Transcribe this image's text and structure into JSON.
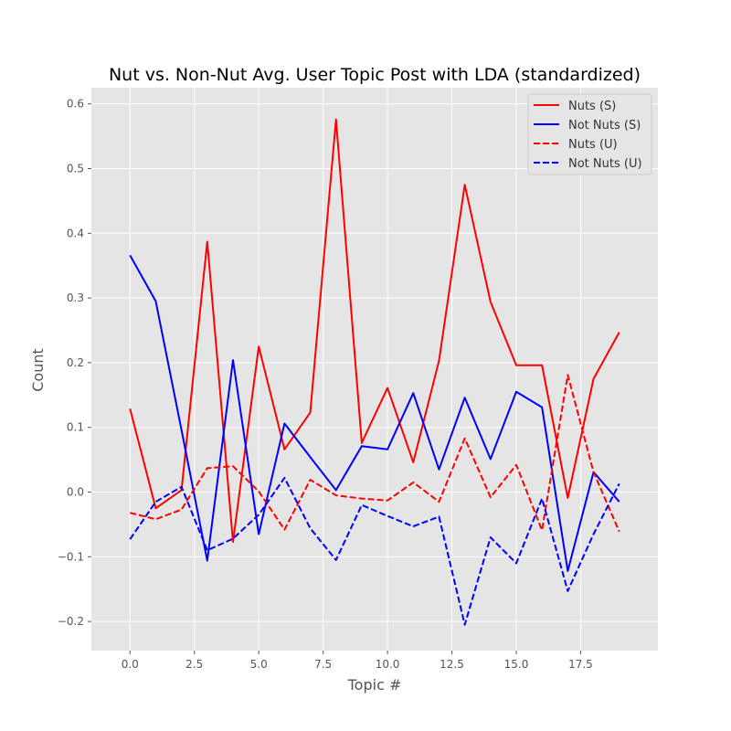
{
  "chart_data": {
    "type": "line",
    "title": "Nut vs. Non-Nut Avg. User Topic Post with LDA (standardized)",
    "xlabel": "Topic #",
    "ylabel": "Count",
    "xlim": [
      -1.5,
      20.5
    ],
    "ylim": [
      -0.245,
      0.625
    ],
    "xticks": [
      0,
      2.5,
      5,
      7.5,
      10,
      12.5,
      15,
      17.5
    ],
    "xtick_labels": [
      "0.0",
      "2.5",
      "5.0",
      "7.5",
      "10.0",
      "12.5",
      "15.0",
      "17.5"
    ],
    "yticks": [
      -0.2,
      -0.1,
      0.0,
      0.1,
      0.2,
      0.3,
      0.4,
      0.5,
      0.6
    ],
    "ytick_labels": [
      "−0.2",
      "−0.1",
      "0.0",
      "0.1",
      "0.2",
      "0.3",
      "0.4",
      "0.5",
      "0.6"
    ],
    "grid": true,
    "legend_position": "top-right",
    "x": [
      0,
      1,
      2,
      3,
      4,
      5,
      6,
      7,
      8,
      9,
      10,
      11,
      12,
      13,
      14,
      15,
      16,
      17,
      18,
      19
    ],
    "series": [
      {
        "name": "Nuts (S)",
        "color": "#ff0000",
        "dash": "solid",
        "values": [
          0.129,
          -0.025,
          0.003,
          0.387,
          -0.077,
          0.225,
          0.066,
          0.123,
          0.576,
          0.076,
          0.161,
          0.046,
          0.203,
          0.475,
          0.294,
          0.196,
          0.196,
          -0.009,
          0.175,
          0.247
        ]
      },
      {
        "name": "Not Nuts (S)",
        "color": "#0000ff",
        "dash": "solid",
        "values": [
          0.366,
          0.295,
          0.096,
          -0.106,
          0.204,
          -0.065,
          0.106,
          0.054,
          0.003,
          0.071,
          0.066,
          0.153,
          0.035,
          0.146,
          0.051,
          0.155,
          0.131,
          -0.122,
          0.031,
          -0.015
        ]
      },
      {
        "name": "Nuts (U)",
        "color": "#ff0000",
        "dash": "dashed",
        "values": [
          -0.032,
          -0.042,
          -0.027,
          0.037,
          0.04,
          0.001,
          -0.058,
          0.019,
          -0.005,
          -0.01,
          -0.013,
          0.015,
          -0.015,
          0.083,
          -0.008,
          0.042,
          -0.059,
          0.181,
          0.031,
          -0.061
        ]
      },
      {
        "name": "Not Nuts (U)",
        "color": "#0000ff",
        "dash": "dashed",
        "values": [
          -0.073,
          -0.015,
          0.008,
          -0.09,
          -0.072,
          -0.035,
          0.022,
          -0.056,
          -0.105,
          -0.02,
          -0.037,
          -0.053,
          -0.038,
          -0.205,
          -0.07,
          -0.11,
          -0.01,
          -0.153,
          -0.065,
          0.013
        ]
      }
    ]
  }
}
